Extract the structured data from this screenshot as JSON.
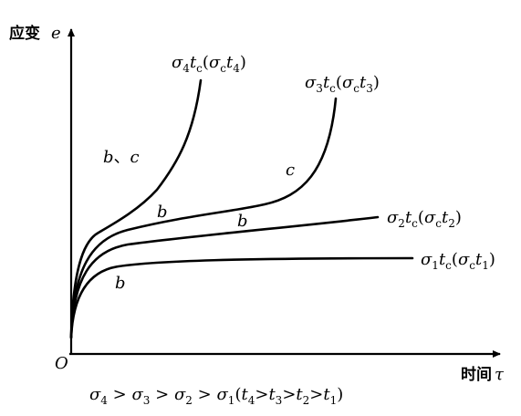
{
  "axes": {
    "y_label": "应变",
    "y_symbol": "e",
    "x_label": "时间",
    "x_symbol": "τ",
    "origin": "O"
  },
  "curves": [
    {
      "id": "sigma1",
      "label_main": "σ",
      "label_main_sub": "1",
      "label_t": "t",
      "label_t_sub": "c",
      "label_paren_sigma": "σ",
      "label_paren_sigma_sub": "c",
      "label_paren_t": "t",
      "label_paren_t_sub": "1"
    },
    {
      "id": "sigma2",
      "label_main": "σ",
      "label_main_sub": "2",
      "label_t": "t",
      "label_t_sub": "c",
      "label_paren_sigma": "σ",
      "label_paren_sigma_sub": "c",
      "label_paren_t": "t",
      "label_paren_t_sub": "2"
    },
    {
      "id": "sigma3",
      "label_main": "σ",
      "label_main_sub": "3",
      "label_t": "t",
      "label_t_sub": "c",
      "label_paren_sigma": "σ",
      "label_paren_sigma_sub": "c",
      "label_paren_t": "t",
      "label_paren_t_sub": "3"
    },
    {
      "id": "sigma4",
      "label_main": "σ",
      "label_main_sub": "4",
      "label_t": "t",
      "label_t_sub": "c",
      "label_paren_sigma": "σ",
      "label_paren_sigma_sub": "c",
      "label_paren_t": "t",
      "label_paren_t_sub": "4"
    }
  ],
  "stage_labels": {
    "b_sigma1": "b",
    "b_sigma2": "b",
    "b_sigma3": "b",
    "c_sigma3": "c",
    "bc_sigma4_b": "b",
    "bc_sigma4_sep": "、",
    "bc_sigma4_c": "c"
  },
  "relation": {
    "s4": "σ",
    "s4_sub": "4",
    "gt": ">",
    "s3": "σ",
    "s3_sub": "3",
    "s2": "σ",
    "s2_sub": "2",
    "s1": "σ",
    "s1_sub": "1",
    "open": "(",
    "t4": "t",
    "t4_sub": "4",
    "t3": "t",
    "t3_sub": "3",
    "t2": "t",
    "t2_sub": "2",
    "t1": "t",
    "t1_sub": "1",
    "close": ")"
  }
}
